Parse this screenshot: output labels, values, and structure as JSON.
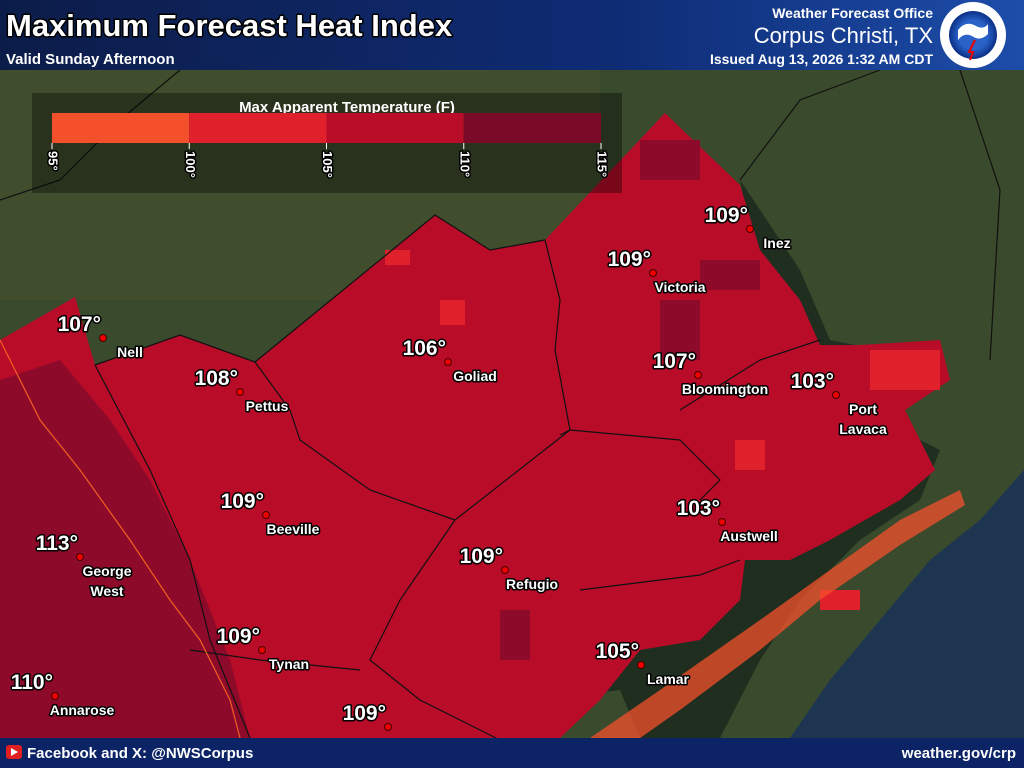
{
  "header": {
    "title": "Maximum Forecast Heat Index",
    "subtitle": "Valid Sunday Afternoon",
    "office_line": "Weather Forecast Office",
    "office": "Corpus Christi, TX",
    "issued": "Issued Aug 13, 2026 1:32 AM CDT"
  },
  "legend": {
    "title": "Max Apparent Temperature (F)",
    "ticks": [
      "95°",
      "100°",
      "105°",
      "110°",
      "115°"
    ],
    "colors": [
      "#f4502c",
      "#e0202a",
      "#b80c28",
      "#7a0a28"
    ]
  },
  "cities": [
    {
      "temp": "109°",
      "name": [
        "Inez"
      ]
    },
    {
      "temp": "109°",
      "name": [
        "Victoria"
      ]
    },
    {
      "temp": "107°",
      "name": [
        "Nell"
      ]
    },
    {
      "temp": "108°",
      "name": [
        "Pettus"
      ]
    },
    {
      "temp": "106°",
      "name": [
        "Goliad"
      ]
    },
    {
      "temp": "107°",
      "name": [
        "Bloomington"
      ]
    },
    {
      "temp": "103°",
      "name": [
        "Port",
        "Lavaca"
      ]
    },
    {
      "temp": "109°",
      "name": [
        "Beeville"
      ]
    },
    {
      "temp": "113°",
      "name": [
        "George",
        "West"
      ]
    },
    {
      "temp": "109°",
      "name": [
        "Refugio"
      ]
    },
    {
      "temp": "103°",
      "name": [
        "Austwell"
      ]
    },
    {
      "temp": "109°",
      "name": [
        "Tynan"
      ]
    },
    {
      "temp": "105°",
      "name": [
        "Lamar"
      ]
    },
    {
      "temp": "110°",
      "name": [
        "Annarose"
      ]
    },
    {
      "temp": "109°"
    }
  ],
  "footer": {
    "social": "Facebook and X: @NWSCorpus",
    "url": "weather.gov/crp"
  }
}
